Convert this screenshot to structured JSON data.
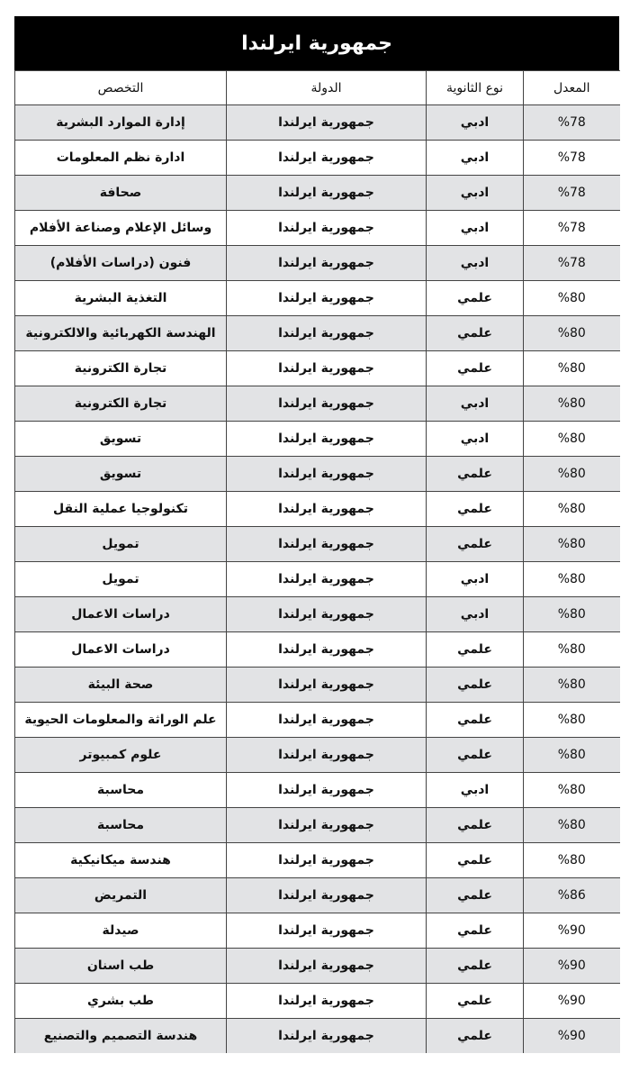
{
  "title": "جمهورية ايرلندا",
  "headers": {
    "rate": "المعدل",
    "type": "نوع الثانوية",
    "country": "الدولة",
    "major": "التخصص"
  },
  "rows": [
    {
      "rate": "%78",
      "type": "ادبي",
      "country": "جمهورية ايرلندا",
      "major": "إدارة الموارد البشرية"
    },
    {
      "rate": "%78",
      "type": "ادبي",
      "country": "جمهورية ايرلندا",
      "major": "ادارة نظم المعلومات"
    },
    {
      "rate": "%78",
      "type": "ادبي",
      "country": "جمهورية ايرلندا",
      "major": "صحافة"
    },
    {
      "rate": "%78",
      "type": "ادبي",
      "country": "جمهورية ايرلندا",
      "major": "وسائل الإعلام وصناعة الأفلام"
    },
    {
      "rate": "%78",
      "type": "ادبي",
      "country": "جمهورية ايرلندا",
      "major": "فنون (دراسات الأفلام)"
    },
    {
      "rate": "%80",
      "type": "علمي",
      "country": "جمهورية ايرلندا",
      "major": "التغذية البشرية"
    },
    {
      "rate": "%80",
      "type": "علمي",
      "country": "جمهورية ايرلندا",
      "major": "الهندسة الكهربائية والالكترونية"
    },
    {
      "rate": "%80",
      "type": "علمي",
      "country": "جمهورية ايرلندا",
      "major": "تجارة الكترونية"
    },
    {
      "rate": "%80",
      "type": "ادبي",
      "country": "جمهورية ايرلندا",
      "major": "تجارة الكترونية"
    },
    {
      "rate": "%80",
      "type": "ادبي",
      "country": "جمهورية ايرلندا",
      "major": "تسويق"
    },
    {
      "rate": "%80",
      "type": "علمي",
      "country": "جمهورية ايرلندا",
      "major": "تسويق"
    },
    {
      "rate": "%80",
      "type": "علمي",
      "country": "جمهورية ايرلندا",
      "major": "تكنولوجيا عملية النقل"
    },
    {
      "rate": "%80",
      "type": "علمي",
      "country": "جمهورية ايرلندا",
      "major": "تمويل"
    },
    {
      "rate": "%80",
      "type": "ادبي",
      "country": "جمهورية ايرلندا",
      "major": "تمويل"
    },
    {
      "rate": "%80",
      "type": "ادبي",
      "country": "جمهورية ايرلندا",
      "major": "دراسات الاعمال"
    },
    {
      "rate": "%80",
      "type": "علمي",
      "country": "جمهورية ايرلندا",
      "major": "دراسات الاعمال"
    },
    {
      "rate": "%80",
      "type": "علمي",
      "country": "جمهورية ايرلندا",
      "major": "صحة البيئة"
    },
    {
      "rate": "%80",
      "type": "علمي",
      "country": "جمهورية ايرلندا",
      "major": "علم الوراثة والمعلومات الحيوية"
    },
    {
      "rate": "%80",
      "type": "علمي",
      "country": "جمهورية ايرلندا",
      "major": "علوم كمبيوتر"
    },
    {
      "rate": "%80",
      "type": "ادبي",
      "country": "جمهورية ايرلندا",
      "major": "محاسبة"
    },
    {
      "rate": "%80",
      "type": "علمي",
      "country": "جمهورية ايرلندا",
      "major": "محاسبة"
    },
    {
      "rate": "%80",
      "type": "علمي",
      "country": "جمهورية ايرلندا",
      "major": "هندسة ميكانيكية"
    },
    {
      "rate": "%86",
      "type": "علمي",
      "country": "جمهورية ايرلندا",
      "major": "التمريض"
    },
    {
      "rate": "%90",
      "type": "علمي",
      "country": "جمهورية ايرلندا",
      "major": "صيدلة"
    },
    {
      "rate": "%90",
      "type": "علمي",
      "country": "جمهورية ايرلندا",
      "major": "طب اسنان"
    },
    {
      "rate": "%90",
      "type": "علمي",
      "country": "جمهورية ايرلندا",
      "major": "طب بشري"
    },
    {
      "rate": "%90",
      "type": "علمي",
      "country": "جمهورية ايرلندا",
      "major": "هندسة التصميم والتصنيع"
    }
  ]
}
